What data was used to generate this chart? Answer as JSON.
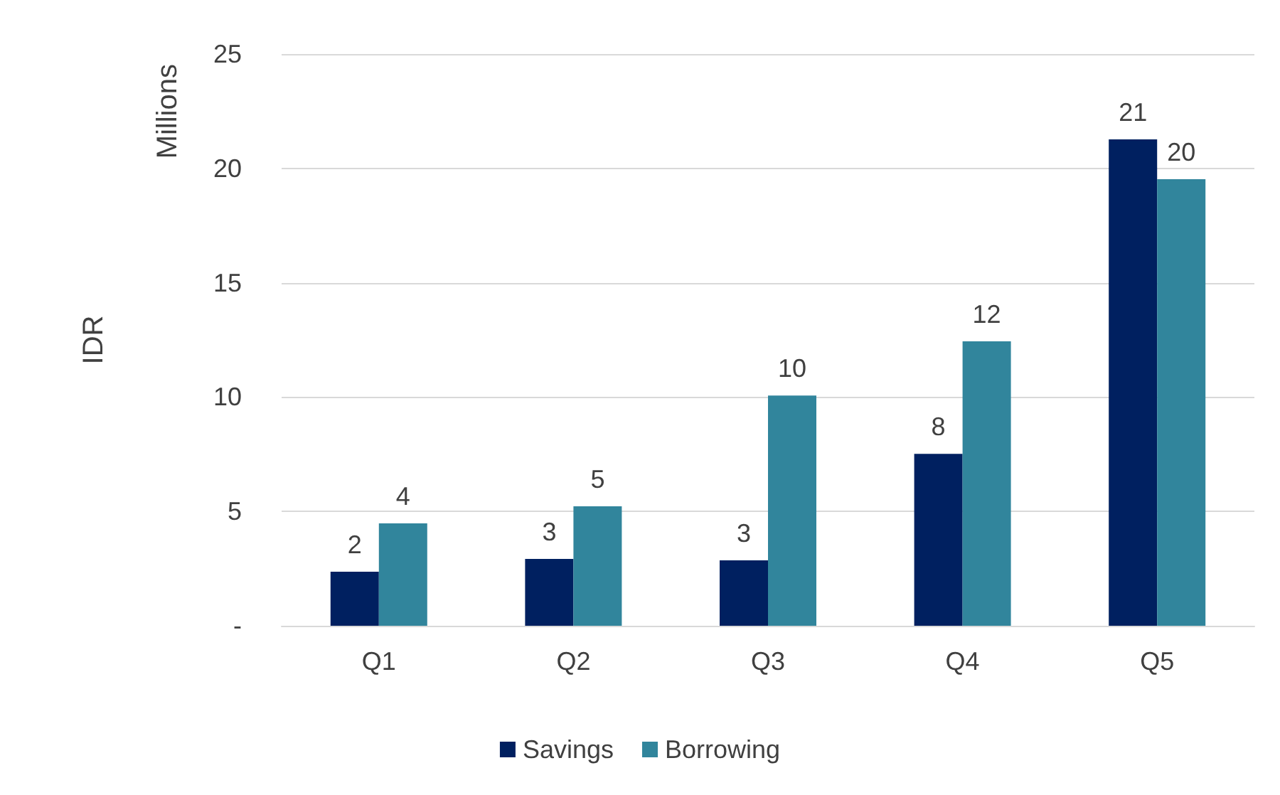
{
  "chart_data": {
    "type": "bar",
    "ylabel": "IDR",
    "annotations": [
      "Millions"
    ],
    "categories": [
      "Q1",
      "Q2",
      "Q3",
      "Q4",
      "Q5"
    ],
    "series": [
      {
        "name": "Savings",
        "color": "#002060",
        "values": [
          2.36,
          2.92,
          2.86,
          7.52,
          21.27
        ],
        "value_labels": [
          "2",
          "3",
          "3",
          "8",
          "21"
        ]
      },
      {
        "name": "Borrowing",
        "color": "#31859c",
        "values": [
          4.48,
          5.22,
          10.07,
          12.44,
          19.53
        ],
        "value_labels": [
          "4",
          "5",
          "10",
          "12",
          "20"
        ]
      }
    ],
    "ylim": [
      0,
      25
    ],
    "yticks": [
      {
        "value": 0,
        "label": "-"
      },
      5,
      10,
      15,
      20,
      25
    ],
    "grid": "y",
    "legend": "bottom"
  }
}
